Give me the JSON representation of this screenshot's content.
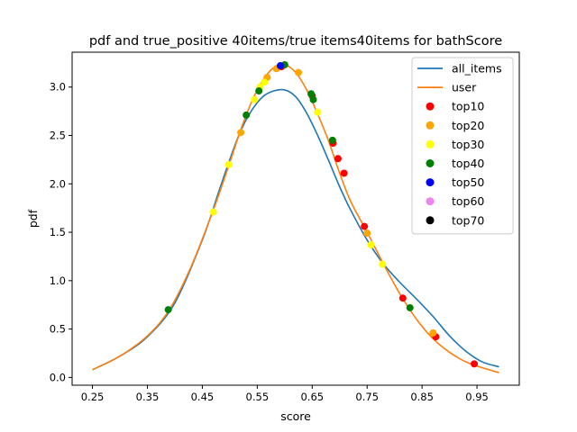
{
  "chart_data": {
    "type": "line",
    "title": "pdf and true_positive 40items/true items40items for bathScore",
    "xlabel": "score",
    "ylabel": "pdf",
    "xlim": [
      0.213,
      1.027
    ],
    "ylim": [
      -0.08,
      3.36
    ],
    "xticks": [
      "0.25",
      "0.35",
      "0.45",
      "0.55",
      "0.65",
      "0.75",
      "0.85",
      "0.95"
    ],
    "yticks": [
      "0.0",
      "0.5",
      "1.0",
      "1.5",
      "2.0",
      "2.5",
      "3.0"
    ],
    "legend_position": "top-right",
    "series": [
      {
        "name": "all_items",
        "color": "#1f77b4",
        "x": [
          0.25,
          0.3,
          0.35,
          0.4,
          0.45,
          0.48,
          0.5,
          0.52,
          0.54,
          0.56,
          0.58,
          0.6,
          0.62,
          0.64,
          0.66,
          0.68,
          0.7,
          0.72,
          0.75,
          0.78,
          0.81,
          0.84,
          0.87,
          0.9,
          0.93,
          0.96,
          0.99
        ],
        "y": [
          0.08,
          0.22,
          0.42,
          0.77,
          1.42,
          1.92,
          2.25,
          2.55,
          2.76,
          2.9,
          2.96,
          2.97,
          2.9,
          2.73,
          2.5,
          2.24,
          1.97,
          1.73,
          1.42,
          1.17,
          0.98,
          0.81,
          0.63,
          0.43,
          0.27,
          0.16,
          0.11
        ]
      },
      {
        "name": "user",
        "color": "#ff7f0e",
        "x": [
          0.25,
          0.3,
          0.35,
          0.39,
          0.43,
          0.47,
          0.5,
          0.52,
          0.54,
          0.56,
          0.58,
          0.6,
          0.62,
          0.64,
          0.66,
          0.68,
          0.7,
          0.72,
          0.75,
          0.78,
          0.81,
          0.84,
          0.87,
          0.9,
          0.93,
          0.96,
          0.99
        ],
        "y": [
          0.08,
          0.22,
          0.43,
          0.7,
          1.15,
          1.73,
          2.22,
          2.56,
          2.85,
          3.07,
          3.2,
          3.23,
          3.15,
          2.97,
          2.72,
          2.44,
          2.11,
          1.82,
          1.5,
          1.17,
          0.86,
          0.6,
          0.4,
          0.26,
          0.16,
          0.1,
          0.05
        ]
      }
    ],
    "scatter_series": [
      {
        "name": "top10",
        "color": "#ff0000",
        "x": [
          0.945,
          0.875,
          0.815,
          0.745,
          0.708,
          0.697,
          0.688,
          0.65,
          0.594
        ],
        "y": [
          0.14,
          0.42,
          0.82,
          1.56,
          2.11,
          2.26,
          2.42,
          2.91,
          3.21
        ]
      },
      {
        "name": "top20",
        "color": "#ffa500",
        "x": [
          0.87,
          0.75,
          0.625,
          0.585,
          0.568,
          0.52
        ],
        "y": [
          0.46,
          1.49,
          3.15,
          3.19,
          3.1,
          2.53
        ]
      },
      {
        "name": "top30",
        "color": "#ffff00",
        "x": [
          0.47,
          0.498,
          0.545,
          0.555,
          0.563,
          0.66,
          0.757,
          0.778
        ],
        "y": [
          1.71,
          2.2,
          2.87,
          3.0,
          3.05,
          2.74,
          1.37,
          1.17
        ]
      },
      {
        "name": "top40",
        "color": "#008000",
        "x": [
          0.388,
          0.53,
          0.553,
          0.6,
          0.648,
          0.652,
          0.687,
          0.828
        ],
        "y": [
          0.7,
          2.71,
          2.96,
          3.23,
          2.93,
          2.87,
          2.45,
          0.72
        ]
      },
      {
        "name": "top50",
        "color": "#0000ff",
        "x": [
          0.592
        ],
        "y": [
          3.22
        ]
      },
      {
        "name": "top60",
        "color": "#ee82ee",
        "x": [],
        "y": []
      },
      {
        "name": "top70",
        "color": "#000000",
        "x": [],
        "y": []
      }
    ]
  }
}
